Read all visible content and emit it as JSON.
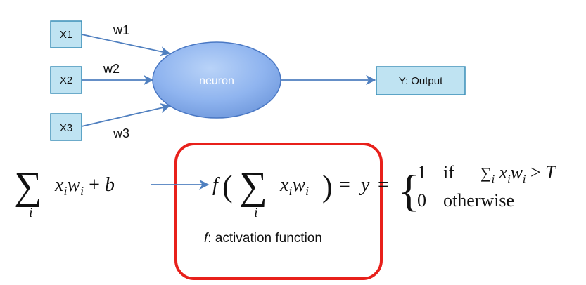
{
  "inputs": [
    "X1",
    "X2",
    "X3"
  ],
  "weights": [
    "w1",
    "w2",
    "w3"
  ],
  "neuron_label": "neuron",
  "output_label": "Y: Output",
  "formula": {
    "sum_part": "x_i w_i + b",
    "sum_index": "i",
    "activation": "f( Σ_i x_i w_i ) = y",
    "case1_value": "1",
    "case1_condition_if": "if",
    "case1_condition_expr": "Σ_i x_i w_i > T",
    "case2_value": "0",
    "case2_condition": "otherwise"
  },
  "caption": {
    "f": "f",
    "rest": ": activation function"
  },
  "colors": {
    "box_fill": "#bfe3f2",
    "box_stroke": "#3b8fb8",
    "neuron_fill": "#8fb4ef",
    "arrow": "#4f7fbf",
    "highlight": "#e8201b"
  }
}
